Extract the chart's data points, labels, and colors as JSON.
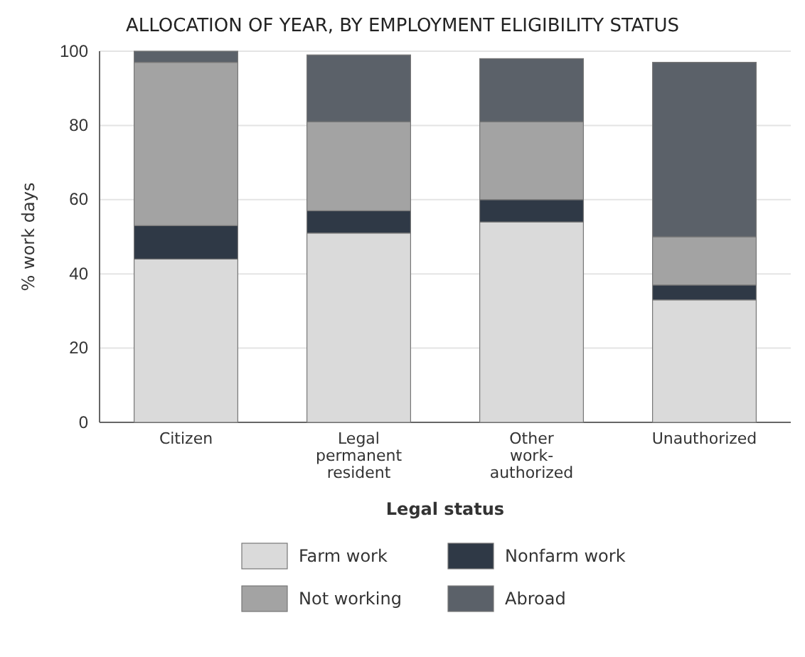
{
  "chart_data": {
    "type": "bar",
    "stacked": true,
    "title": "ALLOCATION OF YEAR, BY EMPLOYMENT ELIGIBILITY STATUS",
    "xlabel": "Legal status",
    "ylabel": "% work days",
    "categories": [
      "Citizen",
      "Legal permanent resident",
      "Other work-authorized",
      "Unauthorized"
    ],
    "series": [
      {
        "name": "Farm work",
        "color": "#dadada",
        "values": [
          44,
          51,
          54,
          33
        ]
      },
      {
        "name": "Nonfarm work",
        "color": "#2f3946",
        "values": [
          9,
          6,
          6,
          4
        ]
      },
      {
        "name": "Not working",
        "color": "#a3a3a3",
        "values": [
          44,
          24,
          21,
          13
        ]
      },
      {
        "name": "Abroad",
        "color": "#5b6169",
        "values": [
          3,
          18,
          17,
          47
        ]
      }
    ],
    "ylim": [
      0,
      100
    ],
    "yticks": [
      0,
      20,
      40,
      60,
      80,
      100
    ],
    "grid": "y",
    "legend": "bottom"
  }
}
